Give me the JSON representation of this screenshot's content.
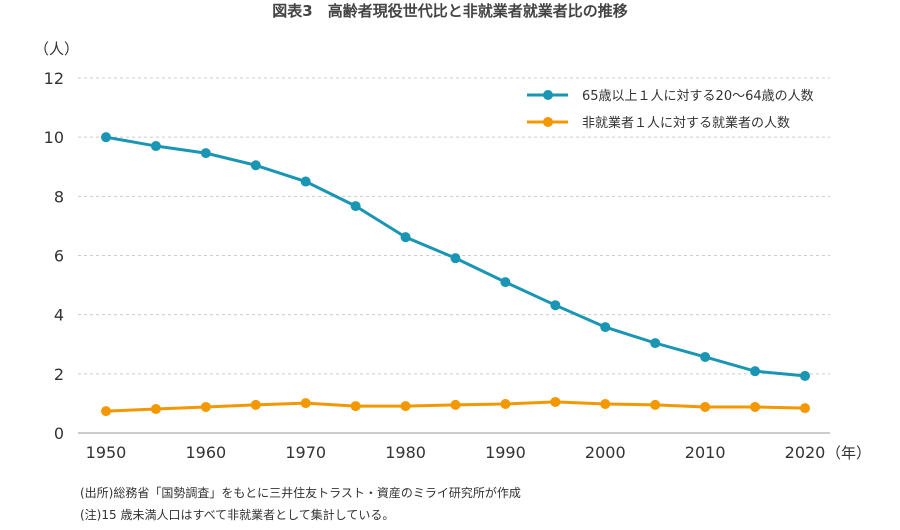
{
  "chart_data": {
    "type": "line",
    "title": "図表3　高齢者現役世代比と非就業者就業者比の推移",
    "ylabel": "（人）",
    "xlabel": "（年）",
    "ylim": [
      0,
      12
    ],
    "yticks": [
      0,
      2,
      4,
      6,
      8,
      10,
      12
    ],
    "xticks": [
      1950,
      1960,
      1970,
      1980,
      1990,
      2000,
      2010,
      2020
    ],
    "grid": "horizontal dashed",
    "legend": "top-right",
    "x": [
      1950,
      1955,
      1960,
      1965,
      1970,
      1975,
      1980,
      1985,
      1990,
      1995,
      2000,
      2005,
      2010,
      2015,
      2020
    ],
    "series": [
      {
        "name": "65歳以上１人に対する20〜64歳の人数",
        "color": "#1a96b4",
        "values": [
          10.0,
          9.7,
          9.46,
          9.05,
          8.5,
          7.67,
          6.62,
          5.91,
          5.1,
          4.32,
          3.58,
          3.04,
          2.57,
          2.09,
          1.93
        ]
      },
      {
        "name": "非就業者１人に対する就業者の人数",
        "color": "#f39800",
        "values": [
          0.74,
          0.81,
          0.88,
          0.95,
          1.01,
          0.91,
          0.91,
          0.95,
          0.98,
          1.05,
          0.98,
          0.95,
          0.88,
          0.88,
          0.84
        ]
      }
    ]
  },
  "notes": [
    "(出所)総務省「国勢調査」をもとに三井住友トラスト・資産のミライ研究所が作成",
    "(注)15 歳未満人口はすべて非就業者として集計している。"
  ]
}
